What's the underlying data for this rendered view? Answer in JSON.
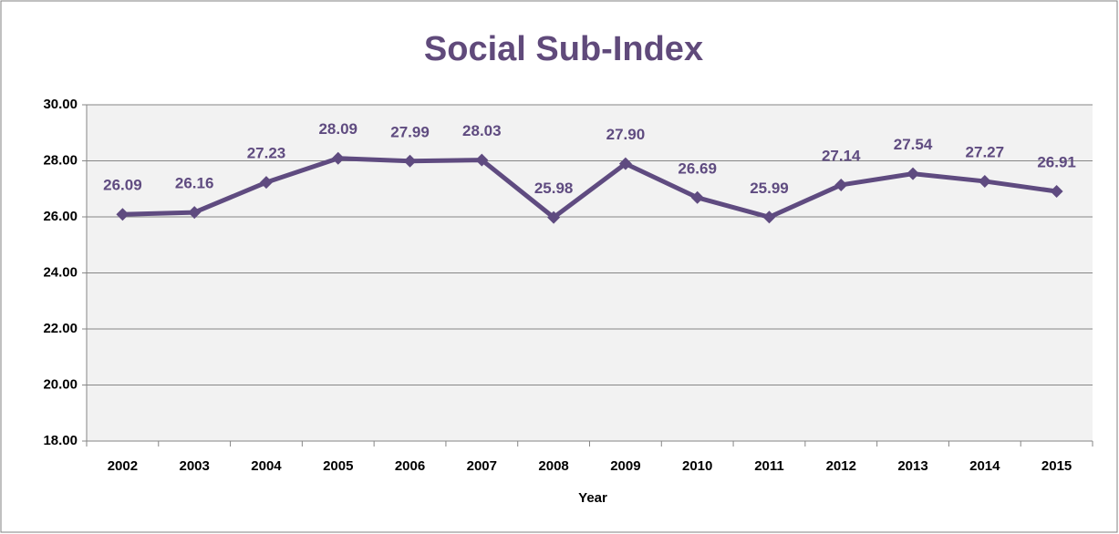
{
  "chart_data": {
    "type": "line",
    "title": "Social Sub-Index",
    "x_label": "Year",
    "categories": [
      "2002",
      "2003",
      "2004",
      "2005",
      "2006",
      "2007",
      "2008",
      "2009",
      "2010",
      "2011",
      "2012",
      "2013",
      "2014",
      "2015"
    ],
    "series": [
      {
        "name": "Social Sub-Index",
        "color": "#5f4b80",
        "values": [
          26.09,
          26.16,
          27.23,
          28.09,
          27.99,
          28.03,
          25.98,
          27.9,
          26.69,
          25.99,
          27.14,
          27.54,
          27.27,
          26.91
        ],
        "value_labels": [
          "26.09",
          "26.16",
          "27.23",
          "28.09",
          "27.99",
          "28.03",
          "25.98",
          "27.90",
          "26.69",
          "25.99",
          "27.14",
          "27.54",
          "27.27",
          "26.91"
        ]
      }
    ],
    "ylim": [
      18,
      30
    ],
    "yticks": [
      {
        "value": 18,
        "label": "18.00"
      },
      {
        "value": 20,
        "label": "20.00"
      },
      {
        "value": 22,
        "label": "22.00"
      },
      {
        "value": 24,
        "label": "24.00"
      },
      {
        "value": 26,
        "label": "26.00"
      },
      {
        "value": 28,
        "label": "28.00"
      },
      {
        "value": 30,
        "label": "30.00"
      }
    ],
    "grid": true
  }
}
